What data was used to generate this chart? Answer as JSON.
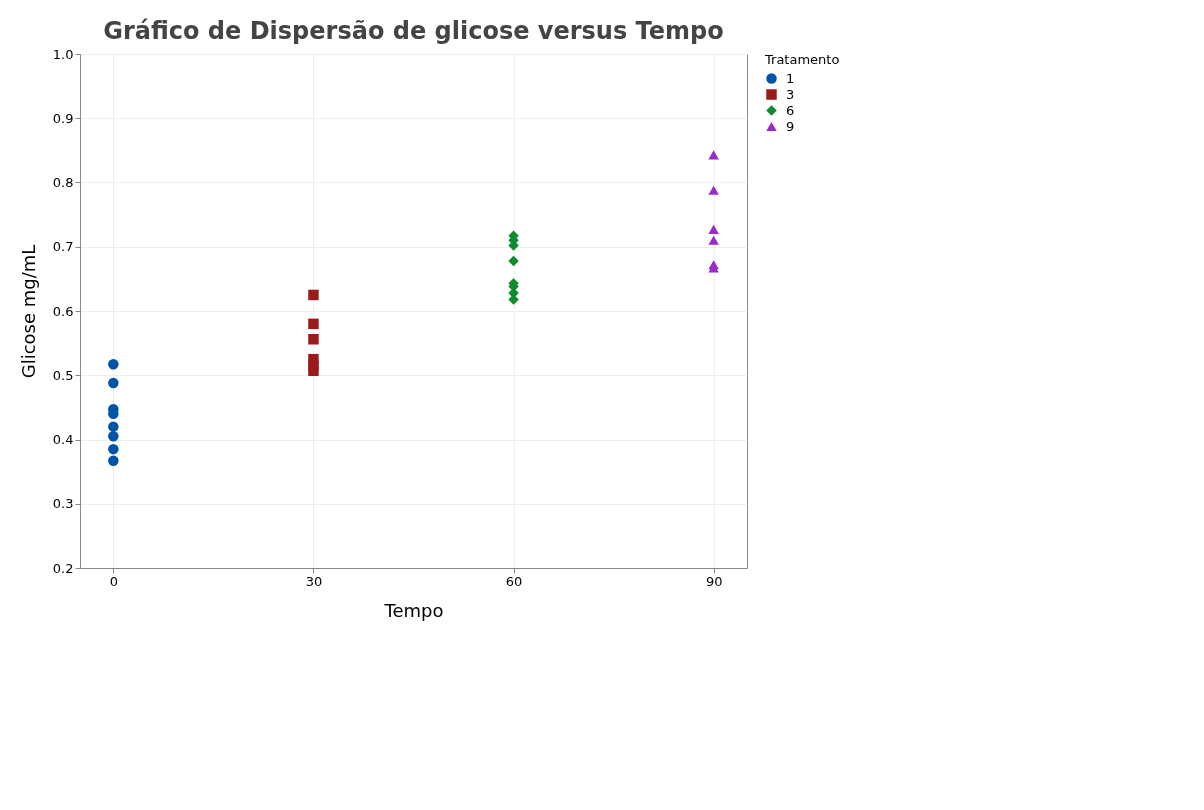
{
  "chart_data": {
    "type": "scatter",
    "title": "Gráfico de Dispersão de glicose versus Tempo",
    "xlabel": "Tempo",
    "ylabel": "Glicose mg/mL",
    "legend_title": "Tratamento",
    "xlim": [
      -5,
      95
    ],
    "xticks": [
      0,
      30,
      60,
      90
    ],
    "ylim": [
      0.2,
      1.0
    ],
    "yticks": [
      {
        "value": 0.2,
        "label": "0.2"
      },
      {
        "value": 0.3,
        "label": "0.3"
      },
      {
        "value": 0.4,
        "label": "0.4"
      },
      {
        "value": 0.5,
        "label": "0.5"
      },
      {
        "value": 0.6,
        "label": "0.6"
      },
      {
        "value": 0.7,
        "label": "0.7"
      },
      {
        "value": 0.8,
        "label": "0.8"
      },
      {
        "value": 0.9,
        "label": "0.9"
      },
      {
        "value": 1.0,
        "label": "1.0"
      }
    ],
    "grid": true,
    "legend": "top right",
    "series": [
      {
        "name": "1",
        "color": "#0054a6",
        "marker": "circle",
        "x": [
          0,
          0,
          0,
          0,
          0,
          0,
          0,
          0
        ],
        "values": [
          0.517,
          0.488,
          0.447,
          0.44,
          0.42,
          0.405,
          0.385,
          0.367
        ]
      },
      {
        "name": "3",
        "color": "#9b1b1b",
        "marker": "square",
        "x": [
          30,
          30,
          30,
          30,
          30,
          30
        ],
        "values": [
          0.625,
          0.58,
          0.556,
          0.525,
          0.515,
          0.507
        ]
      },
      {
        "name": "6",
        "color": "#0e8a2f",
        "marker": "diamond",
        "x": [
          60,
          60,
          60,
          60,
          60,
          60,
          60,
          60
        ],
        "values": [
          0.717,
          0.71,
          0.702,
          0.678,
          0.643,
          0.638,
          0.628,
          0.618
        ]
      },
      {
        "name": "9",
        "color": "#9a2bc4",
        "marker": "triangle",
        "x": [
          90,
          90,
          90,
          90,
          90,
          90
        ],
        "values": [
          0.843,
          0.788,
          0.727,
          0.71,
          0.672,
          0.667
        ]
      }
    ]
  }
}
